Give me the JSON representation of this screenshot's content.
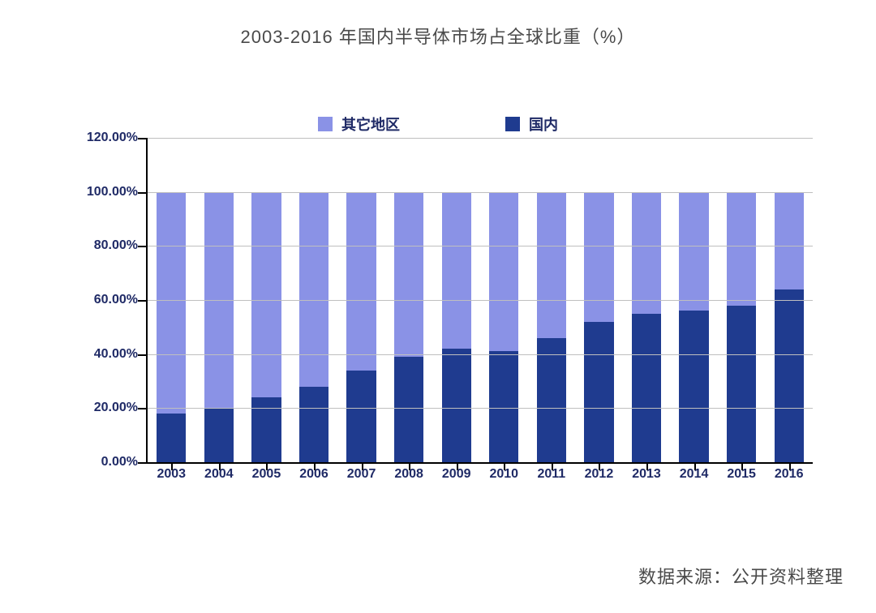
{
  "title": "2003-2016 年国内半导体市场占全球比重（%）",
  "source_label": "数据来源：公开资料整理",
  "chart": {
    "type": "stacked-bar",
    "legend": {
      "items": [
        {
          "label": "其它地区",
          "color": "#8a92e6"
        },
        {
          "label": "国内",
          "color": "#1f3b8f"
        }
      ]
    },
    "y_axis": {
      "min": 0,
      "max": 120,
      "tick_step": 20,
      "ticks": [
        0,
        20,
        40,
        60,
        80,
        100,
        120
      ],
      "tick_labels": [
        "0.00%",
        "20.00%",
        "40.00%",
        "60.00%",
        "80.00%",
        "100.00%",
        "120.00%"
      ],
      "label_color": "#1f2a66",
      "label_fontsize": 16,
      "label_fontweight": "bold",
      "grid_color": "#bfbfbf",
      "axis_color": "#000000"
    },
    "x_axis": {
      "categories": [
        "2003",
        "2004",
        "2005",
        "2006",
        "2007",
        "2008",
        "2009",
        "2010",
        "2011",
        "2012",
        "2013",
        "2014",
        "2015",
        "2016"
      ],
      "label_color": "#1f2a66",
      "label_fontsize": 16,
      "label_fontweight": "bold",
      "axis_color": "#000000"
    },
    "series": {
      "domestic": {
        "label": "国内",
        "color": "#1f3b8f",
        "values": [
          18,
          20,
          24,
          28,
          34,
          39,
          42,
          41,
          46,
          52,
          55,
          56,
          58,
          64
        ]
      },
      "other": {
        "label": "其它地区",
        "color": "#8a92e6",
        "values": [
          82,
          80,
          76,
          72,
          66,
          61,
          58,
          59,
          54,
          48,
          45,
          44,
          42,
          36
        ]
      }
    },
    "stack_total": 100,
    "bar_width_ratio": 0.62,
    "background_color": "#ffffff"
  }
}
